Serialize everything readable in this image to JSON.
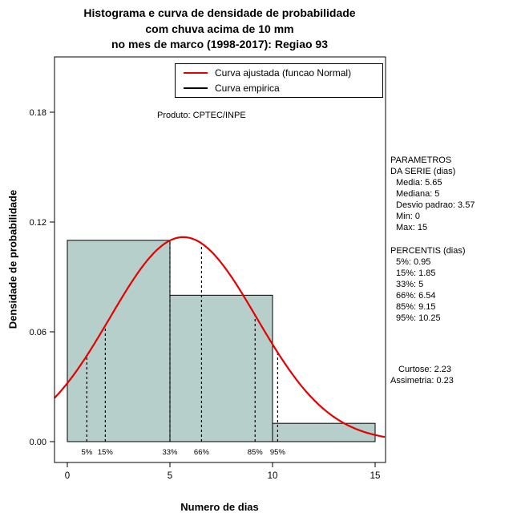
{
  "title": {
    "line1": "Histograma e curva de densidade de probabilidade",
    "line2": "com chuva acima de 10 mm",
    "line3": "no mes de marco (1998-2017): Regiao 93"
  },
  "chart_data": {
    "type": "bar",
    "subtype": "histogram-with-density-curve",
    "title": "Histograma e curva de densidade de probabilidade com chuva acima de 10 mm no mes de marco (1998-2017): Regiao 93",
    "xlabel": "Numero de dias",
    "ylabel": "Densidade de probabilidade",
    "xlim": [
      0,
      15
    ],
    "ylim": [
      0,
      0.18
    ],
    "x_ticks": [
      0,
      5,
      10,
      15
    ],
    "x_tick_labels": [
      "0",
      "5",
      "10",
      "15"
    ],
    "y_ticks": [
      0,
      0.06,
      0.12,
      0.18
    ],
    "y_tick_labels": [
      "0.00",
      "0.06",
      "0.12",
      "0.18"
    ],
    "grid": false,
    "bars": [
      {
        "x0": 0,
        "x1": 5,
        "density": 0.11
      },
      {
        "x0": 5,
        "x1": 10,
        "density": 0.08
      },
      {
        "x0": 10,
        "x1": 15,
        "density": 0.01
      }
    ],
    "normal_fit": {
      "mean": 5.65,
      "sd": 3.57
    },
    "percentile_lines": [
      {
        "label": "5%",
        "x": 0.95
      },
      {
        "label": "15%",
        "x": 1.85
      },
      {
        "label": "33%",
        "x": 5
      },
      {
        "label": "66%",
        "x": 6.54
      },
      {
        "label": "85%",
        "x": 9.15
      },
      {
        "label": "95%",
        "x": 10.25
      }
    ],
    "legend": [
      {
        "label": "Curva ajustada (funcao Normal)",
        "color": "#e60000"
      },
      {
        "label": "Curva empirica",
        "color": "#000000"
      }
    ],
    "legend_position": "top-right",
    "annotation": "Produto: CPTEC/INPE",
    "colors": {
      "bar_fill": "#b7cfca",
      "bar_border": "#000000",
      "curve": "#e60000"
    }
  },
  "stats_panel": {
    "header1": "PARAMETROS",
    "header2": "DA SERIE (dias)",
    "params": [
      "Media: 5.65",
      "Mediana: 5",
      "Desvio padrao: 3.57",
      "Min: 0",
      "Max: 15"
    ],
    "percentis_header": "PERCENTIS (dias)",
    "percentis": [
      "5%: 0.95",
      "15%: 1.85",
      "33%: 5",
      "66%: 6.54",
      "85%: 9.15",
      "95%: 10.25"
    ],
    "curtose": "Curtose: 2.23",
    "assimetria": "Assimetria: 0.23"
  }
}
